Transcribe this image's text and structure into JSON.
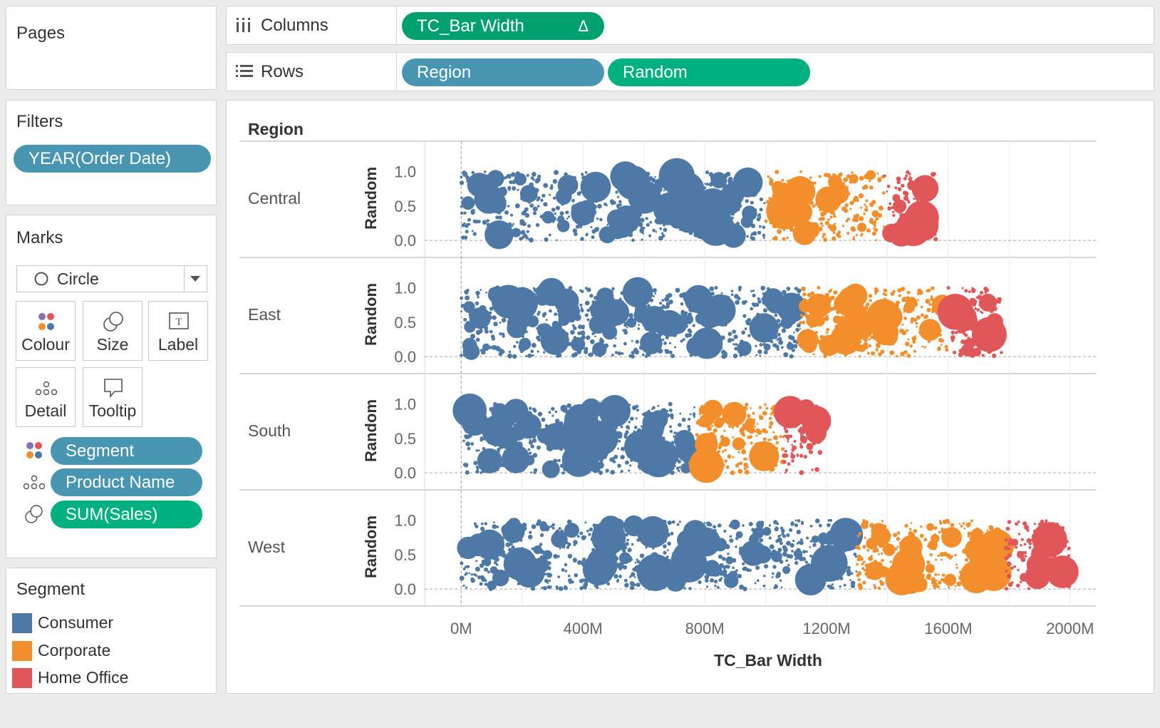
{
  "pages_card": {
    "title": "Pages"
  },
  "filters_card": {
    "title": "Filters",
    "pill": "YEAR(Order Date)"
  },
  "marks_card": {
    "title": "Marks",
    "mark_type": "Circle",
    "buttons": {
      "colour": "Colour",
      "size": "Size",
      "label": "Label",
      "detail": "Detail",
      "tooltip": "Tooltip"
    },
    "fields": {
      "colour_field": "Segment",
      "detail_field": "Product Name",
      "size_field": "SUM(Sales)"
    }
  },
  "legend_card": {
    "title": "Segment",
    "items": [
      {
        "label": "Consumer",
        "color": "#4e79a7"
      },
      {
        "label": "Corporate",
        "color": "#f28e2b"
      },
      {
        "label": "Home Office",
        "color": "#e15759"
      }
    ]
  },
  "shelves": {
    "columns_label": "Columns",
    "columns_pill": "TC_Bar Width",
    "columns_pill_delta": "Δ",
    "rows_label": "Rows",
    "rows_pills": [
      "Region",
      "Random"
    ]
  },
  "chart_data": {
    "type": "scatter",
    "row_header": "Region",
    "ylabel": "Random",
    "xlabel": "TC_Bar Width",
    "x_ticks": [
      "0M",
      "400M",
      "800M",
      "1200M",
      "1600M",
      "2000M"
    ],
    "y_ticks": [
      "0.0",
      "0.5",
      "1.0"
    ],
    "xlim": [
      -120,
      2080
    ],
    "ylim": [
      -0.05,
      1.15
    ],
    "unit": "M",
    "regions": [
      {
        "name": "Central",
        "segments": [
          {
            "name": "Consumer",
            "x_range": [
              0,
              1000
            ]
          },
          {
            "name": "Corporate",
            "x_range": [
              1000,
              1390
            ]
          },
          {
            "name": "Home Office",
            "x_range": [
              1390,
              1560
            ]
          }
        ]
      },
      {
        "name": "East",
        "segments": [
          {
            "name": "Consumer",
            "x_range": [
              0,
              1110
            ]
          },
          {
            "name": "Corporate",
            "x_range": [
              1110,
              1600
            ]
          },
          {
            "name": "Home Office",
            "x_range": [
              1600,
              1780
            ]
          }
        ]
      },
      {
        "name": "South",
        "segments": [
          {
            "name": "Consumer",
            "x_range": [
              0,
              770
            ]
          },
          {
            "name": "Corporate",
            "x_range": [
              770,
              1060
            ]
          },
          {
            "name": "Home Office",
            "x_range": [
              1060,
              1190
            ]
          }
        ]
      },
      {
        "name": "West",
        "segments": [
          {
            "name": "Consumer",
            "x_range": [
              0,
              1300
            ]
          },
          {
            "name": "Corporate",
            "x_range": [
              1300,
              1790
            ]
          },
          {
            "name": "Home Office",
            "x_range": [
              1790,
              2000
            ]
          }
        ]
      }
    ]
  }
}
